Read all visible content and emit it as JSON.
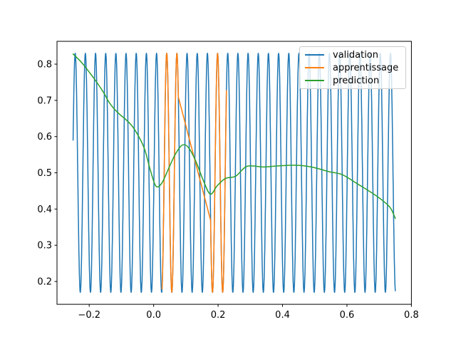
{
  "figure": {
    "background": "#ffffff",
    "spine_color": "#000000",
    "tick_color": "#000000",
    "tick_label_color": "#000000",
    "legend_border_color": "#cccccc"
  },
  "chart_data": {
    "type": "line",
    "title": "",
    "xlabel": "",
    "ylabel": "",
    "grid": false,
    "xlim": [
      -0.3,
      0.8
    ],
    "ylim": [
      0.137,
      0.863
    ],
    "xticks": {
      "values": [
        -0.2,
        0.0,
        0.2,
        0.4,
        0.6,
        0.8
      ],
      "labels": [
        "−0.2",
        "0.0",
        "0.2",
        "0.4",
        "0.6",
        "0.8"
      ]
    },
    "yticks": {
      "values": [
        0.2,
        0.3,
        0.4,
        0.5,
        0.6,
        0.7,
        0.8
      ],
      "labels": [
        "0.2",
        "0.3",
        "0.4",
        "0.5",
        "0.6",
        "0.7",
        "0.8"
      ]
    },
    "legend": {
      "position": "upper right"
    },
    "series": [
      {
        "name": "validation",
        "color": "#1f77b4",
        "kind": "sine",
        "mean": 0.5,
        "amplitude": 0.33,
        "cycles_per_unit": 31.68,
        "peak_x": -0.2435,
        "segments": [
          [
            -0.25,
            0.75
          ]
        ]
      },
      {
        "name": "apprentissage",
        "color": "#ff7f0e",
        "kind": "sine",
        "mean": 0.5,
        "amplitude": 0.33,
        "cycles_per_unit": 31.68,
        "peak_x": -0.2435,
        "segments": [
          [
            0.026,
            0.0766
          ],
          [
            0.1768,
            0.2259
          ]
        ],
        "gap_connected": true
      },
      {
        "name": "prediction",
        "color": "#2ca02c",
        "kind": "points",
        "points": [
          [
            -0.25,
            0.828
          ],
          [
            -0.225,
            0.806
          ],
          [
            -0.2,
            0.778
          ],
          [
            -0.175,
            0.748
          ],
          [
            -0.155,
            0.721
          ],
          [
            -0.14,
            0.697
          ],
          [
            -0.125,
            0.679
          ],
          [
            -0.105,
            0.661
          ],
          [
            -0.085,
            0.646
          ],
          [
            -0.065,
            0.627
          ],
          [
            -0.045,
            0.598
          ],
          [
            -0.028,
            0.565
          ],
          [
            -0.012,
            0.513
          ],
          [
            0.002,
            0.472
          ],
          [
            0.012,
            0.461
          ],
          [
            0.027,
            0.474
          ],
          [
            0.047,
            0.513
          ],
          [
            0.067,
            0.551
          ],
          [
            0.088,
            0.576
          ],
          [
            0.107,
            0.571
          ],
          [
            0.13,
            0.534
          ],
          [
            0.155,
            0.477
          ],
          [
            0.176,
            0.441
          ],
          [
            0.197,
            0.464
          ],
          [
            0.222,
            0.484
          ],
          [
            0.255,
            0.491
          ],
          [
            0.29,
            0.518
          ],
          [
            0.34,
            0.516
          ],
          [
            0.385,
            0.519
          ],
          [
            0.44,
            0.521
          ],
          [
            0.49,
            0.516
          ],
          [
            0.545,
            0.503
          ],
          [
            0.585,
            0.495
          ],
          [
            0.63,
            0.471
          ],
          [
            0.675,
            0.446
          ],
          [
            0.71,
            0.424
          ],
          [
            0.735,
            0.403
          ],
          [
            0.75,
            0.374
          ]
        ]
      }
    ]
  }
}
